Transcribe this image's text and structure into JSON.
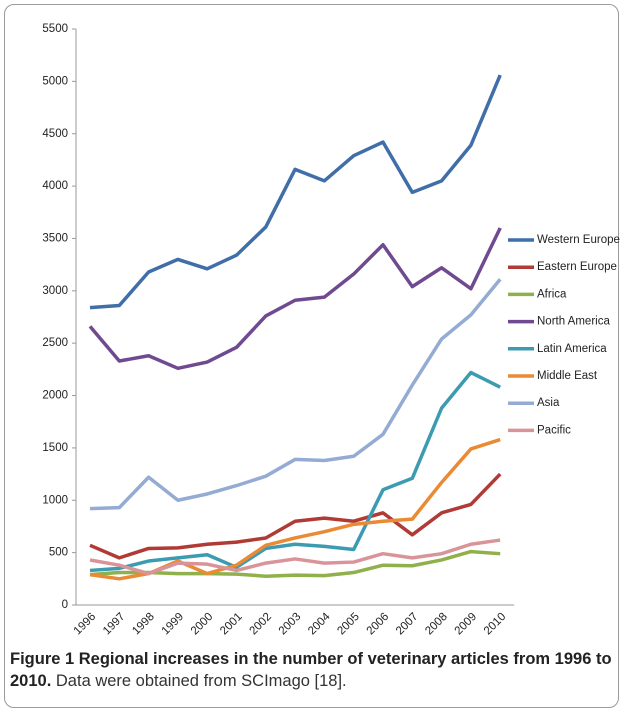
{
  "chart_data": {
    "type": "line",
    "categories": [
      "1996",
      "1997",
      "1998",
      "1999",
      "2000",
      "2001",
      "2002",
      "2003",
      "2004",
      "2005",
      "2006",
      "2007",
      "2008",
      "2009",
      "2010"
    ],
    "ylim": [
      0,
      5500
    ],
    "yticks": [
      0,
      500,
      1000,
      1500,
      2000,
      2500,
      3000,
      3500,
      4000,
      4500,
      5000,
      5500
    ],
    "legend": "right",
    "series": [
      {
        "name": "Western Europe",
        "color": "#3f6ea8",
        "values": [
          2840,
          2860,
          3180,
          3300,
          3210,
          3340,
          3610,
          4160,
          4050,
          4290,
          4420,
          3940,
          4050,
          4390,
          5060
        ]
      },
      {
        "name": "Eastern Europe",
        "color": "#b03a35",
        "values": [
          570,
          450,
          540,
          545,
          580,
          600,
          640,
          800,
          830,
          800,
          880,
          670,
          880,
          960,
          1250
        ]
      },
      {
        "name": "Africa",
        "color": "#8fb04a",
        "values": [
          290,
          310,
          310,
          300,
          300,
          295,
          275,
          285,
          280,
          310,
          380,
          375,
          430,
          510,
          490
        ]
      },
      {
        "name": "North America",
        "color": "#6f4a91",
        "values": [
          2660,
          2330,
          2380,
          2260,
          2320,
          2460,
          2760,
          2910,
          2940,
          3160,
          3440,
          3040,
          3220,
          3020,
          3600
        ]
      },
      {
        "name": "Latin America",
        "color": "#3c9bb0",
        "values": [
          330,
          350,
          420,
          450,
          480,
          360,
          540,
          580,
          560,
          530,
          1100,
          1210,
          1880,
          2220,
          2080
        ]
      },
      {
        "name": "Middle East",
        "color": "#ea8a34",
        "values": [
          290,
          250,
          300,
          420,
          300,
          380,
          570,
          640,
          700,
          770,
          800,
          820,
          1170,
          1490,
          1580
        ]
      },
      {
        "name": "Asia",
        "color": "#94abd3",
        "values": [
          920,
          930,
          1220,
          1000,
          1060,
          1140,
          1230,
          1390,
          1380,
          1420,
          1630,
          2100,
          2540,
          2770,
          3110
        ]
      },
      {
        "name": "Pacific",
        "color": "#d9949a",
        "values": [
          430,
          380,
          300,
          400,
          390,
          330,
          400,
          440,
          400,
          410,
          490,
          450,
          490,
          580,
          620
        ]
      }
    ]
  },
  "caption": {
    "title": "Figure 1 Regional increases in the number of veterinary articles from 1996 to 2010.",
    "note": "Data were obtained from SCImago [18]."
  }
}
